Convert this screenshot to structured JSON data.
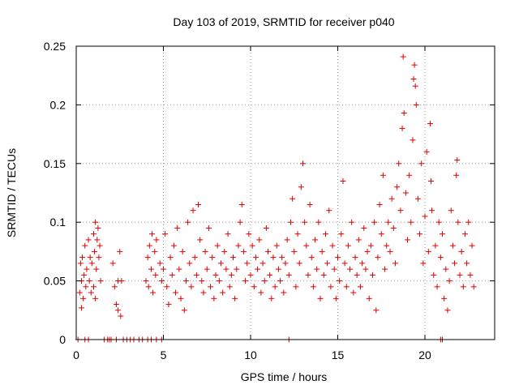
{
  "chart_data": {
    "type": "scatter",
    "title": "Day 103 of 2019, SRMTID for receiver p040",
    "xlabel": "GPS time / hours",
    "ylabel": "SRMTID / TECUs",
    "xlim": [
      0,
      24
    ],
    "ylim": [
      0,
      0.25
    ],
    "xticks": [
      0,
      5,
      10,
      15,
      20
    ],
    "xtick_labels": [
      "0",
      "5",
      "10",
      "15",
      "20"
    ],
    "yticks": [
      0,
      0.05,
      0.1,
      0.15,
      0.2,
      0.25
    ],
    "ytick_labels": [
      "0",
      "0.05",
      "0.1",
      "0.15",
      "0.2",
      "0.25"
    ],
    "grid": true,
    "marker": "+",
    "color": "#e00000",
    "series": [
      {
        "name": "SRMTID",
        "points": [
          [
            0.2,
            0.04
          ],
          [
            0.25,
            0.065
          ],
          [
            0.3,
            0.05
          ],
          [
            0.35,
            0.07
          ],
          [
            0.4,
            0.035
          ],
          [
            0.45,
            0.055
          ],
          [
            0.5,
            0.08
          ],
          [
            0.55,
            0.045
          ],
          [
            0.6,
            0.06
          ],
          [
            0.7,
            0.085
          ],
          [
            0.75,
            0.05
          ],
          [
            0.8,
            0.07
          ],
          [
            0.85,
            0.04
          ],
          [
            0.9,
            0.065
          ],
          [
            1.0,
            0.09
          ],
          [
            1.05,
            0.075
          ],
          [
            1.1,
            0.1
          ],
          [
            1.15,
            0.06
          ],
          [
            1.2,
            0.085
          ],
          [
            1.25,
            0.095
          ],
          [
            1.3,
            0.07
          ],
          [
            1.35,
            0.08
          ],
          [
            1.4,
            0.05
          ],
          [
            1.1,
            0.035
          ],
          [
            1.0,
            0.045
          ],
          [
            0.3,
            0.027
          ],
          [
            2.1,
            0.065
          ],
          [
            2.2,
            0.045
          ],
          [
            2.3,
            0.03
          ],
          [
            2.4,
            0.05
          ],
          [
            2.5,
            0.075
          ],
          [
            2.6,
            0.05
          ],
          [
            2.55,
            0.02
          ],
          [
            2.4,
            0.025
          ],
          [
            4.0,
            0.05
          ],
          [
            4.1,
            0.07
          ],
          [
            4.15,
            0.045
          ],
          [
            4.2,
            0.08
          ],
          [
            4.3,
            0.06
          ],
          [
            4.35,
            0.09
          ],
          [
            4.4,
            0.04
          ],
          [
            4.5,
            0.075
          ],
          [
            4.55,
            0.055
          ],
          [
            4.6,
            0.085
          ],
          [
            4.8,
            0.065
          ],
          [
            4.9,
            0.05
          ],
          [
            5.0,
            0.06
          ],
          [
            5.1,
            0.09
          ],
          [
            5.2,
            0.045
          ],
          [
            5.3,
            0.03
          ],
          [
            5.4,
            0.07
          ],
          [
            5.5,
            0.055
          ],
          [
            5.6,
            0.08
          ],
          [
            5.7,
            0.04
          ],
          [
            5.8,
            0.095
          ],
          [
            5.9,
            0.06
          ],
          [
            6.0,
            0.035
          ],
          [
            6.1,
            0.075
          ],
          [
            6.2,
            0.025
          ],
          [
            6.3,
            0.05
          ],
          [
            6.4,
            0.1
          ],
          [
            6.5,
            0.065
          ],
          [
            6.6,
            0.045
          ],
          [
            6.7,
            0.11
          ],
          [
            6.8,
            0.07
          ],
          [
            6.9,
            0.055
          ],
          [
            7.0,
            0.115
          ],
          [
            7.1,
            0.085
          ],
          [
            7.2,
            0.05
          ],
          [
            7.3,
            0.04
          ],
          [
            7.4,
            0.075
          ],
          [
            7.5,
            0.06
          ],
          [
            7.6,
            0.095
          ],
          [
            7.7,
            0.045
          ],
          [
            7.8,
            0.07
          ],
          [
            7.9,
            0.035
          ],
          [
            8.0,
            0.055
          ],
          [
            8.1,
            0.08
          ],
          [
            8.2,
            0.05
          ],
          [
            8.3,
            0.065
          ],
          [
            8.4,
            0.04
          ],
          [
            8.5,
            0.075
          ],
          [
            8.6,
            0.06
          ],
          [
            8.7,
            0.09
          ],
          [
            8.8,
            0.045
          ],
          [
            8.9,
            0.055
          ],
          [
            9.0,
            0.07
          ],
          [
            9.1,
            0.035
          ],
          [
            9.2,
            0.06
          ],
          [
            9.3,
            0.08
          ],
          [
            9.4,
            0.1
          ],
          [
            9.5,
            0.115
          ],
          [
            9.6,
            0.075
          ],
          [
            9.7,
            0.05
          ],
          [
            9.8,
            0.065
          ],
          [
            9.9,
            0.09
          ],
          [
            10.0,
            0.055
          ],
          [
            10.1,
            0.08
          ],
          [
            10.2,
            0.045
          ],
          [
            10.3,
            0.07
          ],
          [
            10.4,
            0.06
          ],
          [
            10.5,
            0.085
          ],
          [
            10.6,
            0.04
          ],
          [
            10.7,
            0.065
          ],
          [
            10.8,
            0.05
          ],
          [
            10.9,
            0.095
          ],
          [
            11.0,
            0.075
          ],
          [
            11.1,
            0.055
          ],
          [
            11.2,
            0.035
          ],
          [
            11.3,
            0.07
          ],
          [
            11.4,
            0.045
          ],
          [
            11.5,
            0.08
          ],
          [
            11.6,
            0.06
          ],
          [
            11.7,
            0.05
          ],
          [
            11.8,
            0.07
          ],
          [
            11.9,
            0.04
          ],
          [
            12.0,
            0.065
          ],
          [
            12.1,
            0.085
          ],
          [
            12.2,
            0.055
          ],
          [
            12.3,
            0.1
          ],
          [
            12.4,
            0.12
          ],
          [
            12.5,
            0.075
          ],
          [
            12.6,
            0.045
          ],
          [
            12.7,
            0.09
          ],
          [
            12.8,
            0.065
          ],
          [
            12.9,
            0.13
          ],
          [
            13.0,
            0.15
          ],
          [
            13.1,
            0.1
          ],
          [
            13.2,
            0.08
          ],
          [
            13.3,
            0.055
          ],
          [
            13.4,
            0.115
          ],
          [
            13.5,
            0.07
          ],
          [
            13.6,
            0.045
          ],
          [
            13.7,
            0.085
          ],
          [
            13.8,
            0.06
          ],
          [
            13.9,
            0.1
          ],
          [
            14.0,
            0.035
          ],
          [
            14.1,
            0.075
          ],
          [
            14.2,
            0.055
          ],
          [
            14.3,
            0.09
          ],
          [
            14.4,
            0.065
          ],
          [
            14.5,
            0.11
          ],
          [
            14.6,
            0.045
          ],
          [
            14.7,
            0.08
          ],
          [
            14.8,
            0.06
          ],
          [
            14.9,
            0.035
          ],
          [
            15.0,
            0.07
          ],
          [
            15.1,
            0.05
          ],
          [
            15.2,
            0.09
          ],
          [
            15.3,
            0.135
          ],
          [
            15.4,
            0.065
          ],
          [
            15.5,
            0.045
          ],
          [
            15.6,
            0.08
          ],
          [
            15.7,
            0.06
          ],
          [
            15.8,
            0.1
          ],
          [
            15.9,
            0.04
          ],
          [
            16.0,
            0.07
          ],
          [
            16.1,
            0.055
          ],
          [
            16.2,
            0.085
          ],
          [
            16.3,
            0.045
          ],
          [
            16.4,
            0.065
          ],
          [
            16.5,
            0.095
          ],
          [
            16.6,
            0.06
          ],
          [
            16.7,
            0.075
          ],
          [
            16.8,
            0.035
          ],
          [
            16.9,
            0.08
          ],
          [
            17.0,
            0.055
          ],
          [
            17.1,
            0.1
          ],
          [
            17.2,
            0.025
          ],
          [
            17.3,
            0.07
          ],
          [
            17.4,
            0.115
          ],
          [
            17.5,
            0.09
          ],
          [
            17.6,
            0.14
          ],
          [
            17.7,
            0.06
          ],
          [
            17.8,
            0.08
          ],
          [
            17.9,
            0.1
          ],
          [
            18.0,
            0.075
          ],
          [
            18.1,
            0.12
          ],
          [
            18.2,
            0.095
          ],
          [
            18.3,
            0.065
          ],
          [
            18.4,
            0.13
          ],
          [
            18.5,
            0.15
          ],
          [
            18.6,
            0.11
          ],
          [
            18.7,
            0.18
          ],
          [
            18.75,
            0.241
          ],
          [
            18.8,
            0.193
          ],
          [
            18.9,
            0.125
          ],
          [
            19.0,
            0.085
          ],
          [
            19.1,
            0.14
          ],
          [
            19.2,
            0.1
          ],
          [
            19.3,
            0.17
          ],
          [
            19.35,
            0.222
          ],
          [
            19.4,
            0.234
          ],
          [
            19.45,
            0.216
          ],
          [
            19.5,
            0.2
          ],
          [
            19.6,
            0.12
          ],
          [
            19.7,
            0.09
          ],
          [
            19.8,
            0.15
          ],
          [
            19.9,
            0.065
          ],
          [
            20.0,
            0.105
          ],
          [
            20.1,
            0.16
          ],
          [
            20.2,
            0.075
          ],
          [
            20.3,
            0.184
          ],
          [
            20.35,
            0.135
          ],
          [
            20.4,
            0.11
          ],
          [
            20.5,
            0.055
          ],
          [
            20.6,
            0.08
          ],
          [
            20.7,
            0.045
          ],
          [
            20.8,
            0.1
          ],
          [
            20.9,
            0.07
          ],
          [
            21.0,
            0.09
          ],
          [
            21.1,
            0.035
          ],
          [
            21.2,
            0.06
          ],
          [
            21.3,
            0.025
          ],
          [
            21.4,
            0.05
          ],
          [
            21.5,
            0.11
          ],
          [
            21.6,
            0.08
          ],
          [
            21.7,
            0.065
          ],
          [
            21.8,
            0.14
          ],
          [
            21.85,
            0.153
          ],
          [
            21.9,
            0.1
          ],
          [
            22.0,
            0.055
          ],
          [
            22.1,
            0.075
          ],
          [
            22.2,
            0.045
          ],
          [
            22.3,
            0.09
          ],
          [
            22.4,
            0.065
          ],
          [
            22.5,
            0.1
          ],
          [
            22.6,
            0.055
          ],
          [
            22.7,
            0.08
          ],
          [
            22.8,
            0.045
          ],
          [
            0.1,
            0.0
          ],
          [
            0.5,
            0.0
          ],
          [
            0.7,
            0.0
          ],
          [
            1.6,
            0.0
          ],
          [
            1.8,
            0.0
          ],
          [
            1.9,
            0.0
          ],
          [
            2.0,
            0.0
          ],
          [
            2.3,
            0.0
          ],
          [
            2.7,
            0.0
          ],
          [
            2.9,
            0.0
          ],
          [
            3.1,
            0.0
          ],
          [
            3.3,
            0.0
          ],
          [
            3.6,
            0.0
          ],
          [
            3.8,
            0.0
          ],
          [
            4.1,
            0.0
          ],
          [
            4.3,
            0.0
          ],
          [
            4.6,
            0.0
          ],
          [
            4.9,
            0.0
          ],
          [
            12.2,
            0.0
          ],
          [
            20.9,
            0.0
          ],
          [
            21.0,
            0.0
          ]
        ]
      }
    ]
  }
}
